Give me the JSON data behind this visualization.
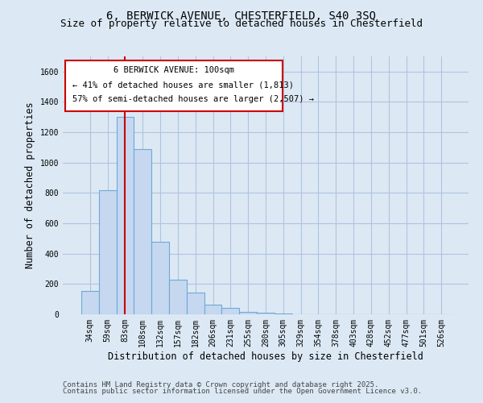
{
  "title_line1": "6, BERWICK AVENUE, CHESTERFIELD, S40 3SQ",
  "title_line2": "Size of property relative to detached houses in Chesterfield",
  "xlabel": "Distribution of detached houses by size in Chesterfield",
  "ylabel": "Number of detached properties",
  "categories": [
    "34sqm",
    "59sqm",
    "83sqm",
    "108sqm",
    "132sqm",
    "157sqm",
    "182sqm",
    "206sqm",
    "231sqm",
    "255sqm",
    "280sqm",
    "305sqm",
    "329sqm",
    "354sqm",
    "378sqm",
    "403sqm",
    "428sqm",
    "452sqm",
    "477sqm",
    "501sqm",
    "526sqm"
  ],
  "values": [
    155,
    820,
    1300,
    1090,
    480,
    230,
    145,
    65,
    40,
    18,
    8,
    4,
    2,
    2,
    1,
    1,
    0,
    0,
    0,
    0,
    0
  ],
  "bar_color": "#c5d8f0",
  "bar_edge_color": "#6fa8d6",
  "red_line_index": 2,
  "annotation_title": "6 BERWICK AVENUE: 100sqm",
  "annotation_line2": "← 41% of detached houses are smaller (1,813)",
  "annotation_line3": "57% of semi-detached houses are larger (2,507) →",
  "annotation_box_color": "#ffffff",
  "annotation_box_edge": "#cc0000",
  "red_line_color": "#cc0000",
  "ylim": [
    0,
    1700
  ],
  "yticks": [
    0,
    200,
    400,
    600,
    800,
    1000,
    1200,
    1400,
    1600
  ],
  "grid_color": "#b0c4de",
  "bg_color": "#dce9f5",
  "footer_line1": "Contains HM Land Registry data © Crown copyright and database right 2025.",
  "footer_line2": "Contains public sector information licensed under the Open Government Licence v3.0.",
  "title_fontsize": 10,
  "subtitle_fontsize": 9,
  "axis_label_fontsize": 8.5,
  "tick_fontsize": 7,
  "annotation_fontsize": 7.5,
  "footer_fontsize": 6.5
}
